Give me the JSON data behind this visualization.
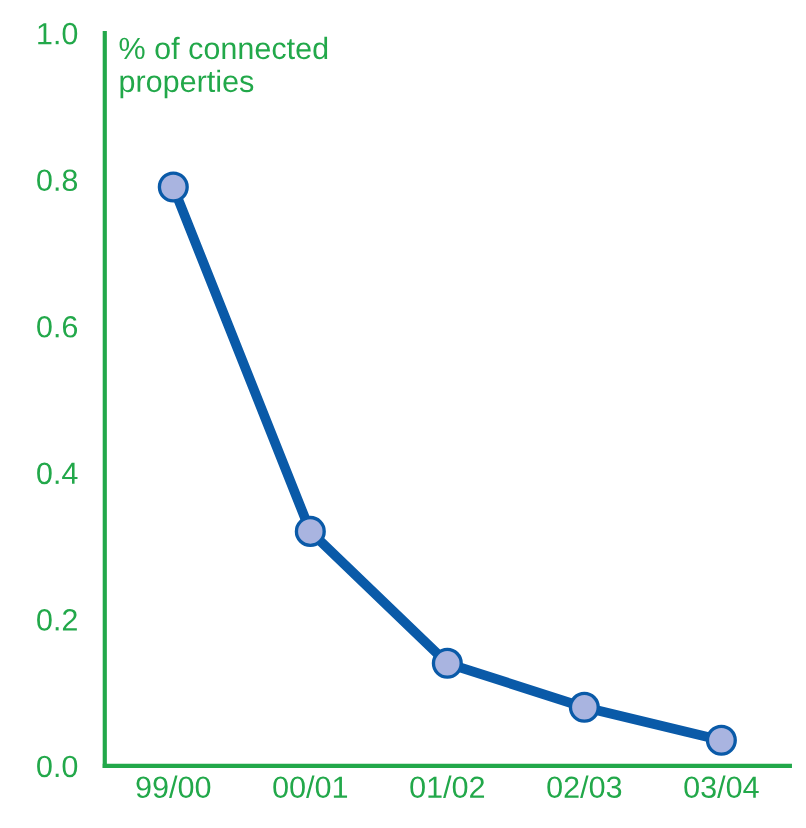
{
  "chart_data": {
    "type": "line",
    "ylabel": "% of connected\nproperties",
    "categories": [
      "99/00",
      "00/01",
      "01/02",
      "02/03",
      "03/04"
    ],
    "series": [
      {
        "color": "#0a5aa8",
        "values": [
          0.79,
          0.32,
          0.14,
          0.08,
          0.035
        ]
      }
    ],
    "ylim": [
      0,
      1.0
    ],
    "yticks": [
      {
        "value": 0,
        "label": "0.0"
      },
      {
        "value": 0.2,
        "label": "0.2"
      },
      {
        "value": 0.4,
        "label": "0.4"
      },
      {
        "value": 0.6,
        "label": "0.6"
      },
      {
        "value": 0.8,
        "label": "0.8"
      },
      {
        "value": 1.0,
        "label": "1.0"
      }
    ],
    "marker": "circle",
    "line_style": "solid",
    "grid": false,
    "legend": false
  }
}
